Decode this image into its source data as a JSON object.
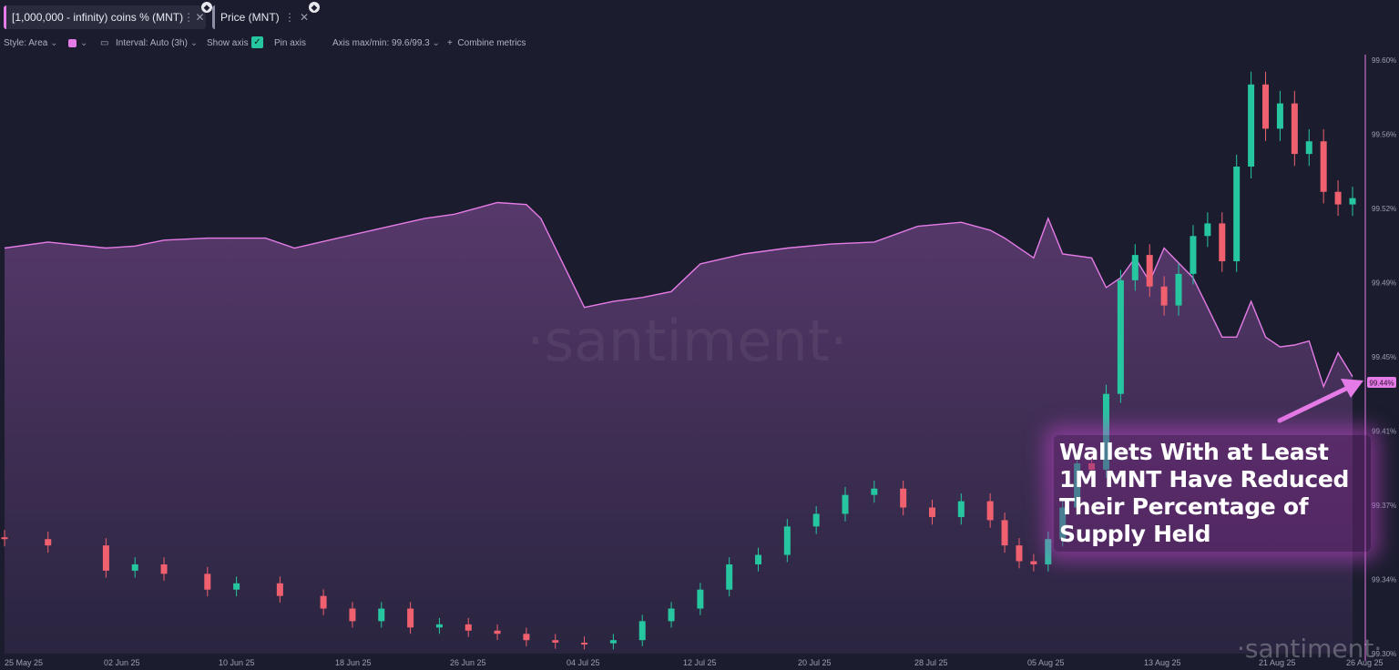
{
  "metric_tabs": [
    {
      "label": "[1,000,000 - infinity) coins % (MNT)",
      "menu_icon": "kebab-icon",
      "close_icon": "close-icon",
      "color": "#e57be6"
    },
    {
      "label": "Price (MNT)",
      "menu_icon": "kebab-icon",
      "close_icon": "close-icon",
      "color": "#8c8fa6"
    }
  ],
  "toolbar": {
    "style_label": "Style: Area",
    "color_swatch": "#e57be6",
    "interval_label": "Interval: Auto (3h)",
    "show_axis_label": "Show axis",
    "pin_axis_label": "Pin axis",
    "axis_maxmin_label": "Axis max/min: 99.6/99.3",
    "combine_label": "Combine metrics"
  },
  "watermark": "·santiment·",
  "corner_logo": "·santiment·",
  "annotation": {
    "text": "Wallets With at Least 1M MNT Have Reduced Their Percentage of Supply Held"
  },
  "chart_data": {
    "type": "area",
    "x_ticks": [
      "25 May 25",
      "02 Jun 25",
      "10 Jun 25",
      "18 Jun 25",
      "26 Jun 25",
      "04 Jul 25",
      "12 Jul 25",
      "20 Jul 25",
      "28 Jul 25",
      "05 Aug 25",
      "13 Aug 25",
      "21 Aug 25",
      "26 Aug 25"
    ],
    "y_ticks": [
      "99.60%",
      "99.56%",
      "99.52%",
      "99.49%",
      "99.45%",
      "99.41%",
      "99.37%",
      "99.34%",
      "99.30%"
    ],
    "ylim": [
      99.3,
      99.6
    ],
    "last_value_badge": "99.44%",
    "grid": false,
    "series": [
      {
        "name": "[1,000,000 - infinity) coins % (MNT)",
        "color": "#e57be6",
        "style": "area",
        "x_dates": [
          "2025-05-25",
          "2025-05-28",
          "2025-06-01",
          "2025-06-03",
          "2025-06-05",
          "2025-06-08",
          "2025-06-12",
          "2025-06-14",
          "2025-06-17",
          "2025-06-20",
          "2025-06-23",
          "2025-06-25",
          "2025-06-28",
          "2025-06-30",
          "2025-07-01",
          "2025-07-04",
          "2025-07-06",
          "2025-07-08",
          "2025-07-10",
          "2025-07-12",
          "2025-07-15",
          "2025-07-18",
          "2025-07-21",
          "2025-07-24",
          "2025-07-27",
          "2025-07-30",
          "2025-08-01",
          "2025-08-02",
          "2025-08-04",
          "2025-08-05",
          "2025-08-06",
          "2025-08-08",
          "2025-08-09",
          "2025-08-10",
          "2025-08-11",
          "2025-08-12",
          "2025-08-13",
          "2025-08-15",
          "2025-08-16",
          "2025-08-17",
          "2025-08-18",
          "2025-08-19",
          "2025-08-20",
          "2025-08-21",
          "2025-08-22",
          "2025-08-23",
          "2025-08-24",
          "2025-08-25",
          "2025-08-26"
        ],
        "values": [
          99.505,
          99.508,
          99.505,
          99.506,
          99.509,
          99.51,
          99.51,
          99.505,
          99.51,
          99.515,
          99.52,
          99.522,
          99.528,
          99.527,
          99.52,
          99.475,
          99.478,
          99.48,
          99.483,
          99.497,
          99.502,
          99.505,
          99.507,
          99.508,
          99.516,
          99.518,
          99.514,
          99.51,
          99.5,
          99.52,
          99.502,
          99.5,
          99.485,
          99.49,
          99.5,
          99.488,
          99.505,
          99.49,
          99.475,
          99.46,
          99.46,
          99.478,
          99.46,
          99.455,
          99.456,
          99.458,
          99.435,
          99.452,
          99.44
        ]
      },
      {
        "name": "Price (MNT)",
        "style": "candlestick",
        "up_color": "#26c6a0",
        "down_color": "#f0606e",
        "x_dates": [
          "2025-05-25",
          "2025-05-28",
          "2025-06-01",
          "2025-06-03",
          "2025-06-05",
          "2025-06-08",
          "2025-06-10",
          "2025-06-13",
          "2025-06-16",
          "2025-06-18",
          "2025-06-20",
          "2025-06-22",
          "2025-06-24",
          "2025-06-26",
          "2025-06-28",
          "2025-06-30",
          "2025-07-02",
          "2025-07-04",
          "2025-07-06",
          "2025-07-08",
          "2025-07-10",
          "2025-07-12",
          "2025-07-14",
          "2025-07-16",
          "2025-07-18",
          "2025-07-20",
          "2025-07-22",
          "2025-07-24",
          "2025-07-26",
          "2025-07-28",
          "2025-07-30",
          "2025-08-01",
          "2025-08-02",
          "2025-08-03",
          "2025-08-04",
          "2025-08-05",
          "2025-08-06",
          "2025-08-07",
          "2025-08-08",
          "2025-08-09",
          "2025-08-10",
          "2025-08-11",
          "2025-08-12",
          "2025-08-13",
          "2025-08-14",
          "2025-08-15",
          "2025-08-16",
          "2025-08-17",
          "2025-08-18",
          "2025-08-19",
          "2025-08-20",
          "2025-08-21",
          "2025-08-22",
          "2025-08-23",
          "2025-08-24",
          "2025-08-25",
          "2025-08-26"
        ],
        "values": [
          0.97,
          0.96,
          0.92,
          0.93,
          0.915,
          0.89,
          0.9,
          0.88,
          0.86,
          0.84,
          0.86,
          0.83,
          0.835,
          0.825,
          0.82,
          0.81,
          0.806,
          0.805,
          0.81,
          0.84,
          0.86,
          0.89,
          0.93,
          0.945,
          0.99,
          1.01,
          1.04,
          1.05,
          1.02,
          1.005,
          1.03,
          1.0,
          0.96,
          0.935,
          0.93,
          0.97,
          1.02,
          1.09,
          1.08,
          1.2,
          1.38,
          1.42,
          1.37,
          1.34,
          1.39,
          1.45,
          1.47,
          1.41,
          1.56,
          1.69,
          1.62,
          1.66,
          1.58,
          1.6,
          1.52,
          1.5,
          1.51
        ]
      }
    ]
  }
}
